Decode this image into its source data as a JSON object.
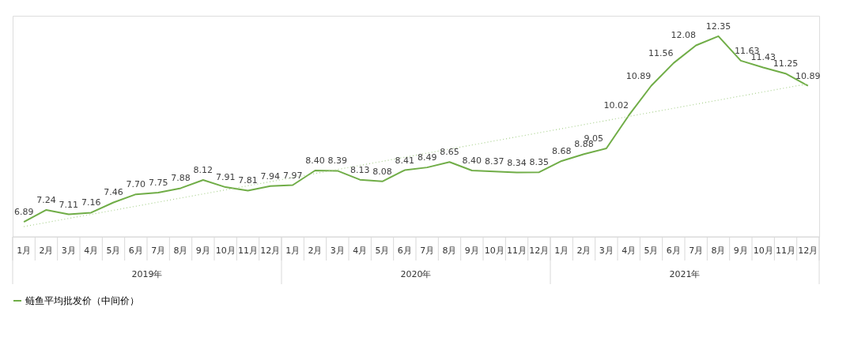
{
  "chart_data": {
    "type": "line",
    "categories": [
      "1月",
      "2月",
      "3月",
      "4月",
      "5月",
      "6月",
      "7月",
      "8月",
      "9月",
      "10月",
      "11月",
      "12月",
      "1月",
      "2月",
      "3月",
      "4月",
      "5月",
      "6月",
      "7月",
      "8月",
      "9月",
      "10月",
      "11月",
      "12月",
      "1月",
      "2月",
      "3月",
      "4月",
      "5月",
      "6月",
      "7月",
      "8月",
      "9月",
      "10月",
      "11月",
      "12月"
    ],
    "series": [
      {
        "name": "鲢鱼平均批发价（中间价）",
        "color": "#70ad47",
        "line_style": "solid",
        "values": [
          6.89,
          7.24,
          7.11,
          7.16,
          7.46,
          7.7,
          7.75,
          7.88,
          8.12,
          7.91,
          7.81,
          7.94,
          7.97,
          8.4,
          8.39,
          8.13,
          8.08,
          8.41,
          8.49,
          8.65,
          8.4,
          8.37,
          8.34,
          8.35,
          8.68,
          8.88,
          9.05,
          10.02,
          10.89,
          11.56,
          12.08,
          12.35,
          11.63,
          11.43,
          11.25,
          10.89
        ],
        "value_labels": [
          "6.89",
          "7.24",
          "7.11",
          "7.16",
          "7.46",
          "7.70",
          "7.75",
          "7.88",
          "8.12",
          "7.91",
          "7.81",
          "7.94",
          "7.97",
          "8.40",
          "8.39",
          "8.13",
          "8.08",
          "8.41",
          "8.49",
          "8.65",
          "8.40",
          "8.37",
          "8.34",
          "8.35",
          "8.68",
          "8.88",
          "9.05",
          "10.02",
          "10.89",
          "11.56",
          "12.08",
          "12.35",
          "11.63",
          "11.43",
          "11.25",
          "10.89"
        ]
      },
      {
        "type": "line",
        "color": "#a9d18e",
        "line_style": "dotted",
        "values": [
          6.75,
          null,
          null,
          null,
          null,
          null,
          null,
          null,
          null,
          null,
          null,
          null,
          null,
          null,
          null,
          null,
          null,
          null,
          null,
          null,
          null,
          null,
          null,
          null,
          null,
          null,
          null,
          null,
          null,
          null,
          null,
          null,
          null,
          null,
          null,
          10.95
        ]
      }
    ],
    "annotations": [
      "2019年",
      "2020年",
      "2021年"
    ],
    "legend": "bottom",
    "marker": "none"
  }
}
